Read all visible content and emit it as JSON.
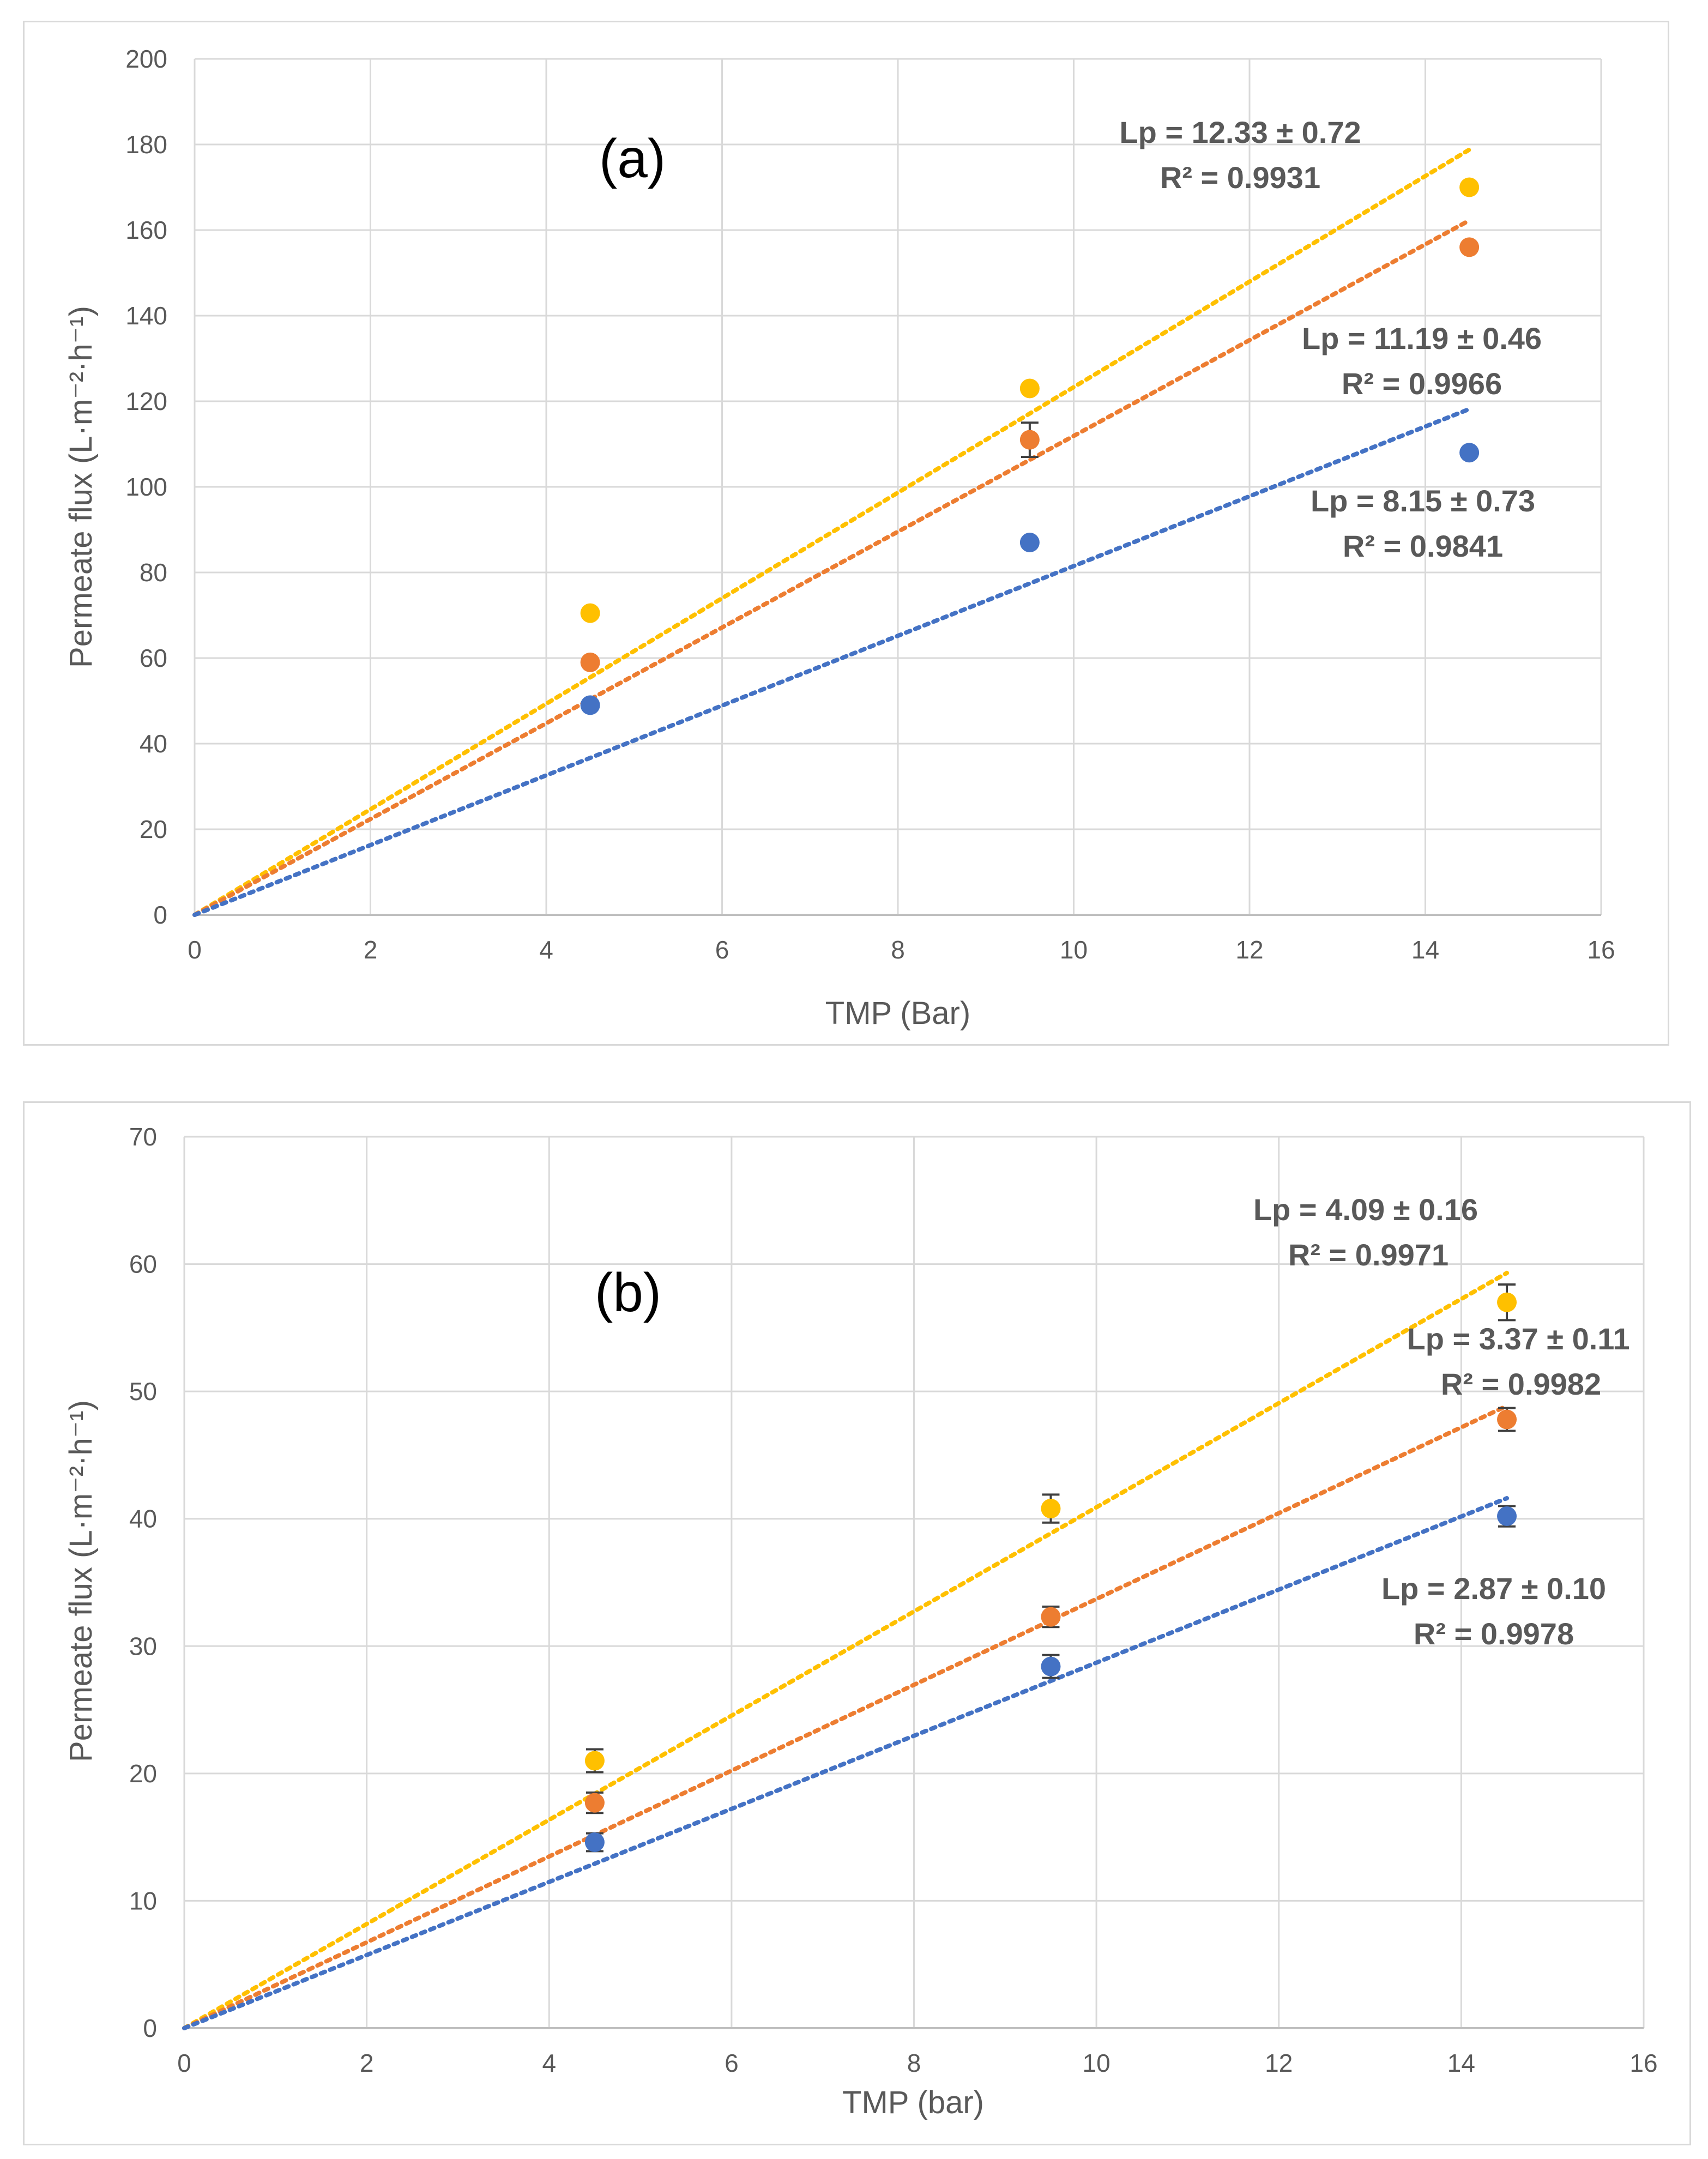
{
  "chart_data": [
    {
      "type": "scatter",
      "panel_label": "(a)",
      "xlabel": "TMP (Bar)",
      "ylabel": "Permeate flux (L·m⁻²·h⁻¹)",
      "xlim": [
        0,
        16
      ],
      "ylim": [
        0,
        200
      ],
      "xticks": [
        "0",
        "2",
        "4",
        "6",
        "8",
        "10",
        "12",
        "14",
        "16"
      ],
      "yticks": [
        "0",
        "20",
        "40",
        "60",
        "80",
        "100",
        "120",
        "140",
        "160",
        "180",
        "200"
      ],
      "grid": true,
      "series": [
        {
          "name": "yellow",
          "color": "#FFC000",
          "x": [
            4.5,
            9.5,
            14.5
          ],
          "y": [
            70.5,
            123,
            170
          ],
          "err": [
            0,
            0,
            0
          ],
          "trend_slope": 12.33,
          "trend_xmax": 14.5,
          "label_lp": "Lp = 12.33 ± 0.72",
          "label_r2": "R² = 0.9931"
        },
        {
          "name": "orange",
          "color": "#ED7D31",
          "x": [
            4.5,
            9.5,
            14.5
          ],
          "y": [
            59,
            111,
            156
          ],
          "err": [
            0,
            4,
            0
          ],
          "trend_slope": 11.19,
          "trend_xmax": 14.5,
          "label_lp": "Lp = 11.19 ± 0.46",
          "label_r2": "R² = 0.9966"
        },
        {
          "name": "blue",
          "color": "#4472C4",
          "x": [
            4.5,
            9.5,
            14.5
          ],
          "y": [
            49,
            87,
            108
          ],
          "err": [
            0,
            0,
            0
          ],
          "trend_slope": 8.15,
          "trend_xmax": 14.5,
          "label_lp": "Lp = 8.15 ± 0.73",
          "label_r2": "R² = 0.9841"
        }
      ]
    },
    {
      "type": "scatter",
      "panel_label": "(b)",
      "xlabel": "TMP (bar)",
      "ylabel": "Permeate flux (L·m⁻²·h⁻¹)",
      "xlim": [
        0,
        16
      ],
      "ylim": [
        0,
        70
      ],
      "xticks": [
        "0",
        "2",
        "4",
        "6",
        "8",
        "10",
        "12",
        "14",
        "16"
      ],
      "yticks": [
        "0",
        "10",
        "20",
        "30",
        "40",
        "50",
        "60",
        "70"
      ],
      "grid": true,
      "series": [
        {
          "name": "yellow",
          "color": "#FFC000",
          "x": [
            4.5,
            9.5,
            14.5
          ],
          "y": [
            21,
            40.8,
            57
          ],
          "err": [
            0.9,
            1.1,
            1.4
          ],
          "trend_slope": 4.09,
          "trend_xmax": 14.5,
          "label_lp": "Lp = 4.09 ± 0.16",
          "label_r2": "R² = 0.9971"
        },
        {
          "name": "orange",
          "color": "#ED7D31",
          "x": [
            4.5,
            9.5,
            14.5
          ],
          "y": [
            17.7,
            32.3,
            47.8
          ],
          "err": [
            0.8,
            0.8,
            0.9
          ],
          "trend_slope": 3.37,
          "trend_xmax": 14.5,
          "label_lp": "Lp = 3.37 ± 0.11",
          "label_r2": "R² = 0.9982"
        },
        {
          "name": "blue",
          "color": "#4472C4",
          "x": [
            4.5,
            9.5,
            14.5
          ],
          "y": [
            14.6,
            28.4,
            40.2
          ],
          "err": [
            0.7,
            0.9,
            0.8
          ],
          "trend_slope": 2.87,
          "trend_xmax": 14.5,
          "label_lp": "Lp = 2.87 ± 0.10",
          "label_r2": "R² = 0.9978"
        }
      ]
    }
  ]
}
